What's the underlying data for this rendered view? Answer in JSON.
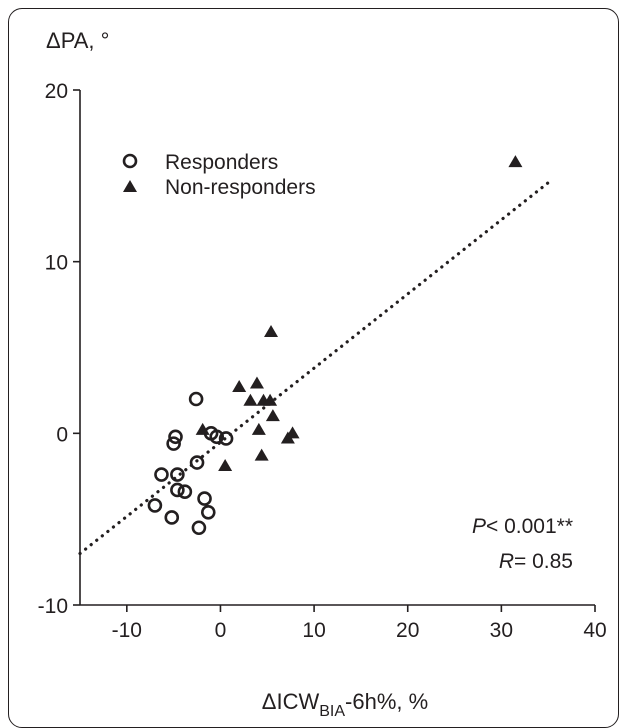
{
  "chart_data": {
    "type": "scatter",
    "ylabel": "ΔPA, °",
    "xlabel_parts": {
      "base": "ΔICW",
      "sub": "BIA",
      "suffix": "-6h%, %"
    },
    "xlim": [
      -15,
      40
    ],
    "ylim": [
      -10,
      20
    ],
    "x_ticks": [
      "-10",
      "0",
      "10",
      "20",
      "30",
      "40"
    ],
    "x_tick_values": [
      -10,
      0,
      10,
      20,
      30,
      40
    ],
    "y_ticks": [
      "-10",
      "0",
      "10",
      "20"
    ],
    "y_tick_values": [
      -10,
      0,
      10,
      20
    ],
    "series": [
      {
        "name": "Responders",
        "marker": "open-circle",
        "points": [
          {
            "x": -7.0,
            "y": -4.2
          },
          {
            "x": -6.3,
            "y": -2.4
          },
          {
            "x": -5.2,
            "y": -4.9
          },
          {
            "x": -5.0,
            "y": -0.6
          },
          {
            "x": -4.8,
            "y": -0.2
          },
          {
            "x": -4.6,
            "y": -2.4
          },
          {
            "x": -4.6,
            "y": -3.3
          },
          {
            "x": -3.8,
            "y": -3.4
          },
          {
            "x": -2.6,
            "y": 2.0
          },
          {
            "x": -2.5,
            "y": -1.7
          },
          {
            "x": -2.3,
            "y": -5.5
          },
          {
            "x": -1.7,
            "y": -3.8
          },
          {
            "x": -1.3,
            "y": -4.6
          },
          {
            "x": -1.0,
            "y": 0.0
          },
          {
            "x": -0.4,
            "y": -0.2
          },
          {
            "x": 0.6,
            "y": -0.3
          }
        ]
      },
      {
        "name": "Non-responders",
        "marker": "filled-triangle",
        "points": [
          {
            "x": -1.9,
            "y": 0.2
          },
          {
            "x": 0.5,
            "y": -1.9
          },
          {
            "x": 2.0,
            "y": 2.7
          },
          {
            "x": 3.2,
            "y": 1.9
          },
          {
            "x": 3.9,
            "y": 2.9
          },
          {
            "x": 4.1,
            "y": 0.2
          },
          {
            "x": 4.4,
            "y": -1.3
          },
          {
            "x": 4.6,
            "y": 1.9
          },
          {
            "x": 5.3,
            "y": 1.9
          },
          {
            "x": 5.4,
            "y": 5.9
          },
          {
            "x": 5.6,
            "y": 1.0
          },
          {
            "x": 7.2,
            "y": -0.3
          },
          {
            "x": 7.7,
            "y": 0.0
          },
          {
            "x": 31.5,
            "y": 15.8
          }
        ]
      }
    ],
    "regression_line": {
      "style": "dotted",
      "x": [
        -15,
        35
      ],
      "y": [
        -7.0,
        14.6
      ]
    },
    "stats": {
      "p_label": "P",
      "p_value": "< 0.001**",
      "r_label": "R",
      "r_value": "= 0.85"
    },
    "legend_position": "top-left",
    "grid": false,
    "colors": {
      "ink": "#231f20"
    }
  }
}
